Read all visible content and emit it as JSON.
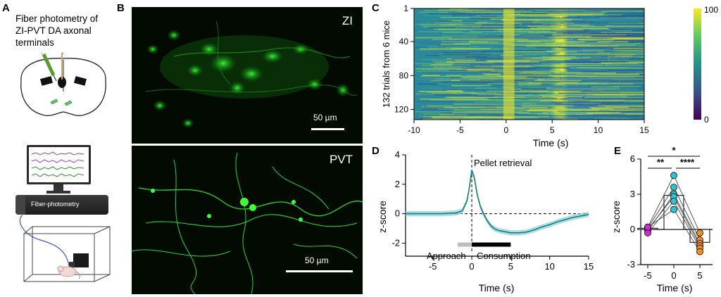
{
  "panels": {
    "a": {
      "letter": "A",
      "title_lines": [
        "Fiber photometry of",
        "ZI-PVT DA axonal",
        "terminals"
      ],
      "device_label": "Fiber-photometry"
    },
    "b": {
      "letter": "B",
      "top_label": "ZI",
      "bottom_label": "PVT",
      "scale_label_top": "50 µm",
      "scale_label_bottom": "50 µm"
    },
    "c": {
      "letter": "C",
      "ylabel": "132 trials from 6 mice",
      "xlabel": "Time (s)",
      "colorbar_max": "100",
      "colorbar_min": "0"
    },
    "d": {
      "letter": "D",
      "ylabel": "z-score",
      "xlabel": "Time (s)",
      "annotation": "Pellet retrieval",
      "approach_label": "Approach",
      "consumption_label": "Consumption"
    },
    "e": {
      "letter": "E",
      "ylabel": "z-score",
      "xlabel": "Time (s)",
      "sig_top": "*",
      "sig_left": "**",
      "sig_right": "****"
    }
  },
  "colors": {
    "trace": "#1a7a80",
    "sem": "#8fd3d6",
    "cyan": "#2ec4d6",
    "magenta": "#d428d4",
    "orange": "#f0901a",
    "green_fluor": "#21c21f"
  },
  "chart_data": [
    {
      "type": "heatmap",
      "panel": "C",
      "ylabel": "132 trials from 6 mice",
      "xlabel": "Time (s)",
      "x_ticks": [
        -10,
        -5,
        0,
        5,
        10,
        15
      ],
      "y_ticks": [
        1,
        40,
        80,
        120
      ],
      "xlim": [
        -10,
        15
      ],
      "ylim": [
        1,
        132
      ],
      "colorbar_range": [
        0,
        100
      ],
      "colormap": "viridis"
    },
    {
      "type": "line",
      "panel": "D",
      "ylabel": "z-score",
      "xlabel": "Time (s)",
      "x_ticks": [
        -5,
        0,
        5,
        10,
        15
      ],
      "y_ticks": [
        -2,
        0,
        2,
        4
      ],
      "xlim": [
        -8.5,
        15
      ],
      "ylim": [
        -2.6,
        4
      ],
      "series": [
        {
          "x": [
            -8.5,
            -6,
            -4,
            -2,
            -1.2,
            -0.6,
            -0.3,
            0,
            0.3,
            0.7,
            1.1,
            1.5,
            2,
            2.5,
            3,
            3.5,
            4,
            5,
            6,
            7,
            8,
            9,
            10,
            11,
            12,
            13,
            14,
            15
          ],
          "values": [
            0.0,
            0.0,
            0.0,
            0.05,
            0.2,
            0.9,
            1.8,
            2.95,
            2.5,
            1.3,
            0.5,
            0.0,
            -0.5,
            -0.85,
            -1.05,
            -1.15,
            -1.2,
            -1.3,
            -1.3,
            -1.25,
            -1.1,
            -0.9,
            -0.75,
            -0.55,
            -0.4,
            -0.25,
            -0.15,
            -0.05
          ]
        }
      ],
      "annotations": [
        "Pellet retrieval",
        "Approach",
        "Consumption"
      ]
    },
    {
      "type": "bar",
      "panel": "E",
      "ylabel": "z-score",
      "xlabel": "Time (s)",
      "categories": [
        "-5",
        "0",
        "5"
      ],
      "values": [
        0.1,
        2.9,
        -1.1
      ],
      "ylim": [
        -3,
        6
      ],
      "y_ticks": [
        -3,
        0,
        3,
        6
      ],
      "points": [
        [
          0.2,
          0.1,
          -0.1,
          0.0,
          -0.3,
          0.2
        ],
        [
          4.6,
          3.6,
          3.0,
          2.8,
          2.4,
          1.7
        ],
        [
          -0.3,
          -0.9,
          -1.2,
          -1.4,
          -1.6,
          -1.9
        ]
      ],
      "significance": [
        "*",
        "**",
        "****"
      ]
    }
  ]
}
